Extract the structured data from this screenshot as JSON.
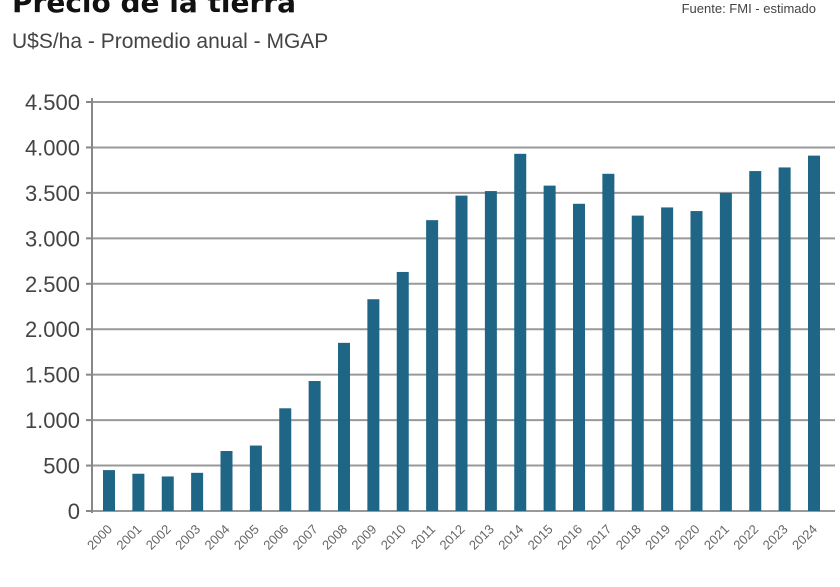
{
  "header": {
    "title": "Precio de la tierra",
    "subtitle": "U$S/ha - Promedio anual  - MGAP",
    "source": "Fuente: FMI - estimado"
  },
  "chart_data": {
    "type": "bar",
    "title": "Precio de la tierra",
    "subtitle": "U$S/ha - Promedio anual  - MGAP",
    "xlabel": "",
    "ylabel": "",
    "ylim": [
      0,
      4500
    ],
    "yticks": [
      0,
      500,
      1000,
      1500,
      2000,
      2500,
      3000,
      3500,
      4000,
      4500
    ],
    "ytick_labels": [
      "0",
      "500",
      "1.000",
      "1.500",
      "2.000",
      "2.500",
      "3.000",
      "3.500",
      "4.000",
      "4.500"
    ],
    "grid": true,
    "color": "#1f6585",
    "categories": [
      "2000",
      "2001",
      "2002",
      "2003",
      "2004",
      "2005",
      "2006",
      "2007",
      "2008",
      "2009",
      "2010",
      "2011",
      "2012",
      "2013",
      "2014",
      "2015",
      "2016",
      "2017",
      "2018",
      "2019",
      "2020",
      "2021",
      "2022",
      "2023",
      "2024"
    ],
    "values": [
      450,
      410,
      380,
      420,
      660,
      720,
      1130,
      1430,
      1850,
      2330,
      2630,
      3200,
      3470,
      3520,
      3930,
      3580,
      3380,
      3710,
      3250,
      3340,
      3300,
      3500,
      3740,
      3780,
      3910
    ]
  }
}
